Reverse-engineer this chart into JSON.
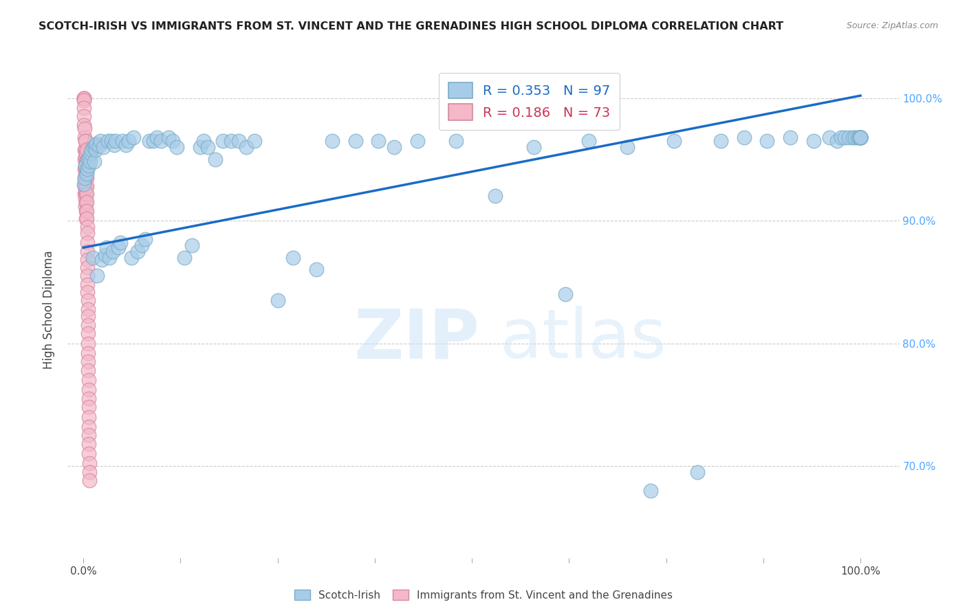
{
  "title": "SCOTCH-IRISH VS IMMIGRANTS FROM ST. VINCENT AND THE GRENADINES HIGH SCHOOL DIPLOMA CORRELATION CHART",
  "source": "Source: ZipAtlas.com",
  "ylabel": "High School Diploma",
  "yticks": [
    0.65,
    0.7,
    0.8,
    0.9,
    1.0
  ],
  "ytick_labels_right": [
    "",
    "70.0%",
    "80.0%",
    "90.0%",
    "100.0%"
  ],
  "blue_R": 0.353,
  "blue_N": 97,
  "pink_R": 0.186,
  "pink_N": 73,
  "blue_scatter_color": "#a8cce8",
  "blue_edge_color": "#7aacc8",
  "pink_scatter_color": "#f4b8c8",
  "pink_edge_color": "#d488a0",
  "blue_line_color": "#1a6bc7",
  "pink_line_color": "#ccaabb",
  "legend_label_blue": "Scotch-Irish",
  "legend_label_pink": "Immigrants from St. Vincent and the Grenadines",
  "xlim": [
    -0.02,
    1.05
  ],
  "ylim": [
    0.625,
    1.03
  ],
  "blue_x": [
    0.001,
    0.002,
    0.003,
    0.004,
    0.005,
    0.006,
    0.007,
    0.008,
    0.009,
    0.01,
    0.011,
    0.012,
    0.013,
    0.014,
    0.015,
    0.016,
    0.017,
    0.018,
    0.02,
    0.022,
    0.024,
    0.026,
    0.028,
    0.03,
    0.032,
    0.034,
    0.036,
    0.038,
    0.04,
    0.042,
    0.045,
    0.048,
    0.05,
    0.055,
    0.058,
    0.062,
    0.065,
    0.07,
    0.075,
    0.08,
    0.085,
    0.09,
    0.095,
    0.1,
    0.11,
    0.115,
    0.12,
    0.13,
    0.14,
    0.15,
    0.155,
    0.16,
    0.17,
    0.18,
    0.19,
    0.2,
    0.21,
    0.22,
    0.25,
    0.27,
    0.3,
    0.32,
    0.35,
    0.38,
    0.4,
    0.43,
    0.48,
    0.53,
    0.58,
    0.62,
    0.65,
    0.7,
    0.73,
    0.76,
    0.79,
    0.82,
    0.85,
    0.88,
    0.91,
    0.94,
    0.96,
    0.97,
    0.975,
    0.98,
    0.985,
    0.99,
    0.993,
    0.996,
    0.998,
    1.0,
    1.0,
    1.0,
    1.0,
    1.0,
    1.0,
    1.0,
    1.0
  ],
  "blue_y": [
    0.93,
    0.935,
    0.945,
    0.938,
    0.942,
    0.95,
    0.945,
    0.952,
    0.948,
    0.955,
    0.958,
    0.87,
    0.96,
    0.948,
    0.962,
    0.958,
    0.963,
    0.855,
    0.961,
    0.965,
    0.868,
    0.96,
    0.872,
    0.878,
    0.965,
    0.87,
    0.965,
    0.875,
    0.962,
    0.965,
    0.878,
    0.882,
    0.965,
    0.962,
    0.965,
    0.87,
    0.968,
    0.875,
    0.88,
    0.885,
    0.965,
    0.965,
    0.968,
    0.965,
    0.968,
    0.965,
    0.96,
    0.87,
    0.88,
    0.96,
    0.965,
    0.96,
    0.95,
    0.965,
    0.965,
    0.965,
    0.96,
    0.965,
    0.835,
    0.87,
    0.86,
    0.965,
    0.965,
    0.965,
    0.96,
    0.965,
    0.965,
    0.92,
    0.96,
    0.84,
    0.965,
    0.96,
    0.68,
    0.965,
    0.695,
    0.965,
    0.968,
    0.965,
    0.968,
    0.965,
    0.968,
    0.965,
    0.968,
    0.968,
    0.968,
    0.968,
    0.968,
    0.968,
    0.968,
    0.968,
    0.968,
    0.968,
    0.968,
    0.968,
    0.968,
    0.968,
    0.968
  ],
  "pink_x": [
    0.0008,
    0.0009,
    0.001,
    0.001,
    0.0011,
    0.0012,
    0.0013,
    0.0014,
    0.0015,
    0.0016,
    0.0017,
    0.0018,
    0.0019,
    0.002,
    0.0021,
    0.0022,
    0.0022,
    0.0023,
    0.0024,
    0.0025,
    0.0026,
    0.0027,
    0.0028,
    0.0029,
    0.003,
    0.0031,
    0.0032,
    0.0033,
    0.0034,
    0.0035,
    0.0036,
    0.0037,
    0.0038,
    0.0039,
    0.004,
    0.0041,
    0.0042,
    0.0043,
    0.0044,
    0.0045,
    0.0046,
    0.0047,
    0.0048,
    0.0049,
    0.005,
    0.0051,
    0.0052,
    0.0053,
    0.0054,
    0.0055,
    0.0056,
    0.0057,
    0.0058,
    0.0059,
    0.006,
    0.0061,
    0.0062,
    0.0063,
    0.0064,
    0.0065,
    0.0066,
    0.0067,
    0.0068,
    0.0069,
    0.007,
    0.0071,
    0.0072,
    0.0073,
    0.0074,
    0.0075,
    0.0076,
    0.0077,
    0.0078
  ],
  "pink_y": [
    1.0,
    1.0,
    1.0,
    0.998,
    0.992,
    0.985,
    0.978,
    0.968,
    0.958,
    0.95,
    0.942,
    0.935,
    0.928,
    0.922,
    0.975,
    0.965,
    0.958,
    0.952,
    0.945,
    0.938,
    0.93,
    0.924,
    0.918,
    0.912,
    0.965,
    0.955,
    0.948,
    0.942,
    0.935,
    0.928,
    0.922,
    0.915,
    0.908,
    0.902,
    0.958,
    0.948,
    0.942,
    0.935,
    0.928,
    0.922,
    0.915,
    0.908,
    0.902,
    0.895,
    0.89,
    0.882,
    0.875,
    0.868,
    0.862,
    0.855,
    0.848,
    0.842,
    0.835,
    0.828,
    0.822,
    0.815,
    0.808,
    0.8,
    0.792,
    0.785,
    0.778,
    0.77,
    0.762,
    0.755,
    0.748,
    0.74,
    0.732,
    0.725,
    0.718,
    0.71,
    0.702,
    0.695,
    0.688
  ],
  "blue_line_x0": 0.0,
  "blue_line_x1": 1.0,
  "blue_line_y0": 0.878,
  "blue_line_y1": 1.002,
  "pink_line_x0": 0.0,
  "pink_line_x1": 0.008,
  "pink_line_y0": 0.955,
  "pink_line_y1": 0.97
}
